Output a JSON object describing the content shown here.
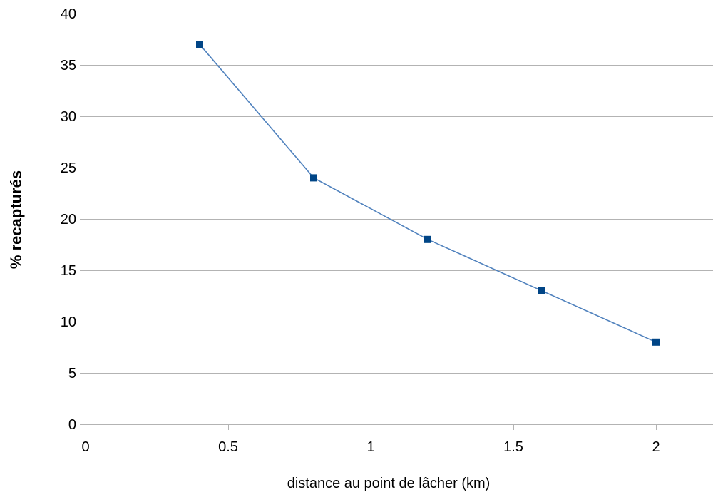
{
  "chart_data": {
    "type": "line",
    "title": "",
    "xlabel": "distance au point de lâcher (km)",
    "ylabel": "% recapturés",
    "xlim": [
      0,
      2.2
    ],
    "ylim": [
      0,
      40
    ],
    "xticks": [
      0,
      0.5,
      1,
      1.5,
      2
    ],
    "xtick_labels": [
      "0",
      "0.5",
      "1",
      "1.5",
      "2"
    ],
    "yticks": [
      0,
      5,
      10,
      15,
      20,
      25,
      30,
      35,
      40
    ],
    "ytick_labels": [
      "0",
      "5",
      "10",
      "15",
      "20",
      "25",
      "30",
      "35",
      "40"
    ],
    "grid": "horizontal",
    "legend": "none",
    "series": [
      {
        "x": [
          0.4,
          0.8,
          1.2,
          1.6,
          2.0
        ],
        "y": [
          37,
          24,
          18,
          13,
          8
        ],
        "line_color": "#4f81bd",
        "marker_color": "#004586",
        "marker": "square"
      }
    ]
  }
}
